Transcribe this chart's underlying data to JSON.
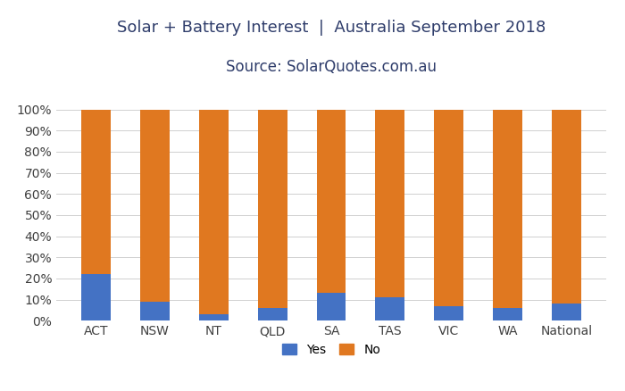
{
  "categories": [
    "ACT",
    "NSW",
    "NT",
    "QLD",
    "SA",
    "TAS",
    "VIC",
    "WA",
    "National"
  ],
  "yes_values": [
    22,
    9,
    3,
    6,
    13,
    11,
    7,
    6,
    8
  ],
  "no_values": [
    78,
    91,
    97,
    94,
    87,
    89,
    93,
    94,
    92
  ],
  "yes_color": "#4472C4",
  "no_color": "#E07820",
  "title_line1": "Solar + Battery Interest  |  Australia September 2018",
  "title_line2": "Source: SolarQuotes.com.au",
  "background_color": "#FFFFFF",
  "grid_color": "#D0D0D0",
  "title_color": "#2F3D6B",
  "tick_label_color": "#404040",
  "ylim": [
    0,
    100
  ],
  "yticks": [
    0,
    10,
    20,
    30,
    40,
    50,
    60,
    70,
    80,
    90,
    100
  ],
  "ytick_labels": [
    "0%",
    "10%",
    "20%",
    "30%",
    "40%",
    "50%",
    "60%",
    "70%",
    "80%",
    "90%",
    "100%"
  ],
  "legend_yes": "Yes",
  "legend_no": "No",
  "title_fontsize": 13,
  "source_fontsize": 12,
  "tick_fontsize": 10,
  "legend_fontsize": 10,
  "bar_width": 0.5
}
